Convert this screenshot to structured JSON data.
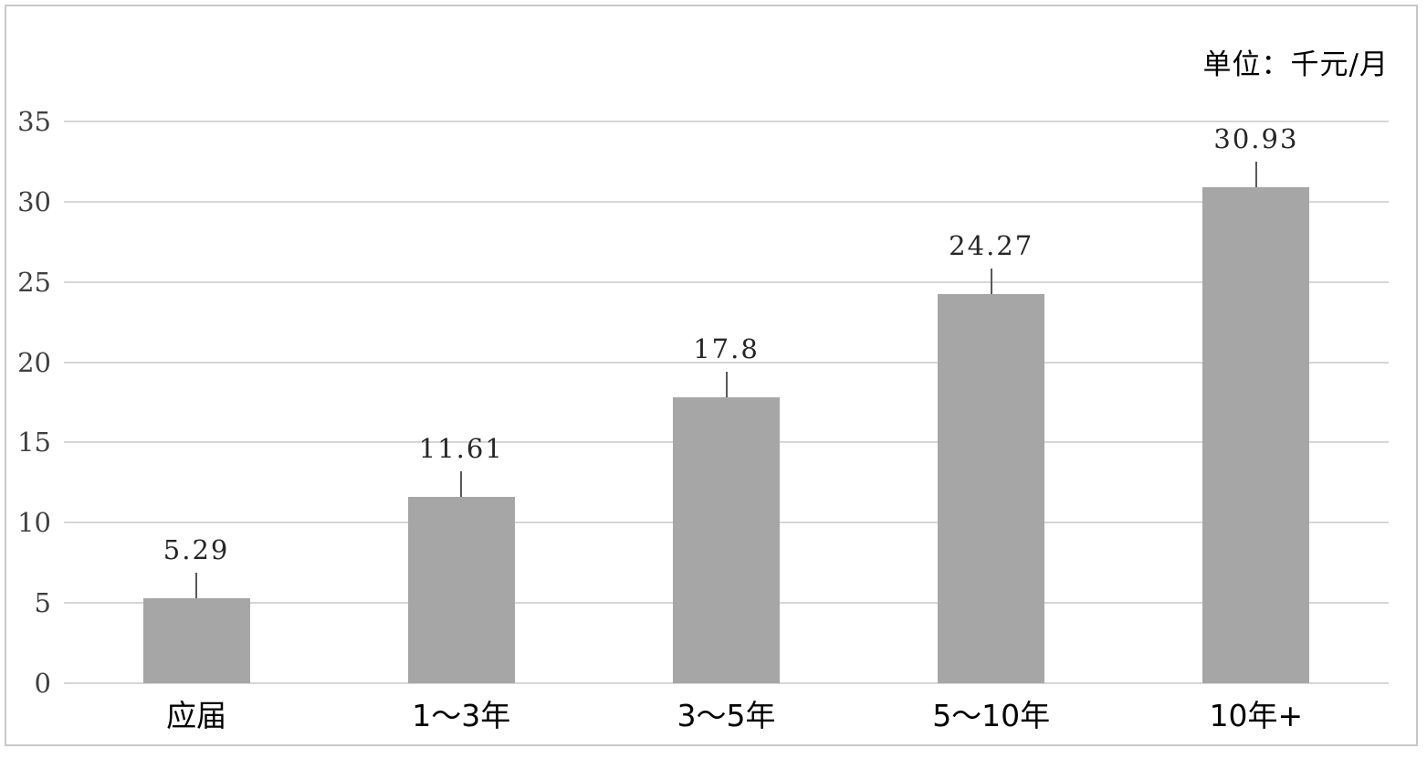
{
  "unit_label": "单位：千元/月",
  "colors": {
    "bar_fill": "#a6a6a6",
    "grid_line": "#d6d6d6",
    "frame_border": "#c9c9c9",
    "leader_line": "#595959",
    "value_label_text": "#262626",
    "y_tick_text": "#404040",
    "x_label_text": "#000000",
    "background": "#ffffff"
  },
  "chart_data": {
    "type": "bar",
    "title": "",
    "xlabel": "",
    "ylabel": "",
    "unit_annotation": "单位：千元/月",
    "categories": [
      "应届",
      "1～3年",
      "3～5年",
      "5～10年",
      "10年+"
    ],
    "values": [
      5.29,
      11.61,
      17.8,
      24.27,
      30.93
    ],
    "value_labels": [
      "5.29",
      "11.61",
      "17.8",
      "24.27",
      "30.93"
    ],
    "ylim": [
      0,
      35
    ],
    "ytick_step": 5,
    "yticks": [
      0,
      5,
      10,
      15,
      20,
      25,
      30,
      35
    ],
    "grid": "horizontal",
    "legend": "none",
    "bar_color": "#a6a6a6"
  }
}
